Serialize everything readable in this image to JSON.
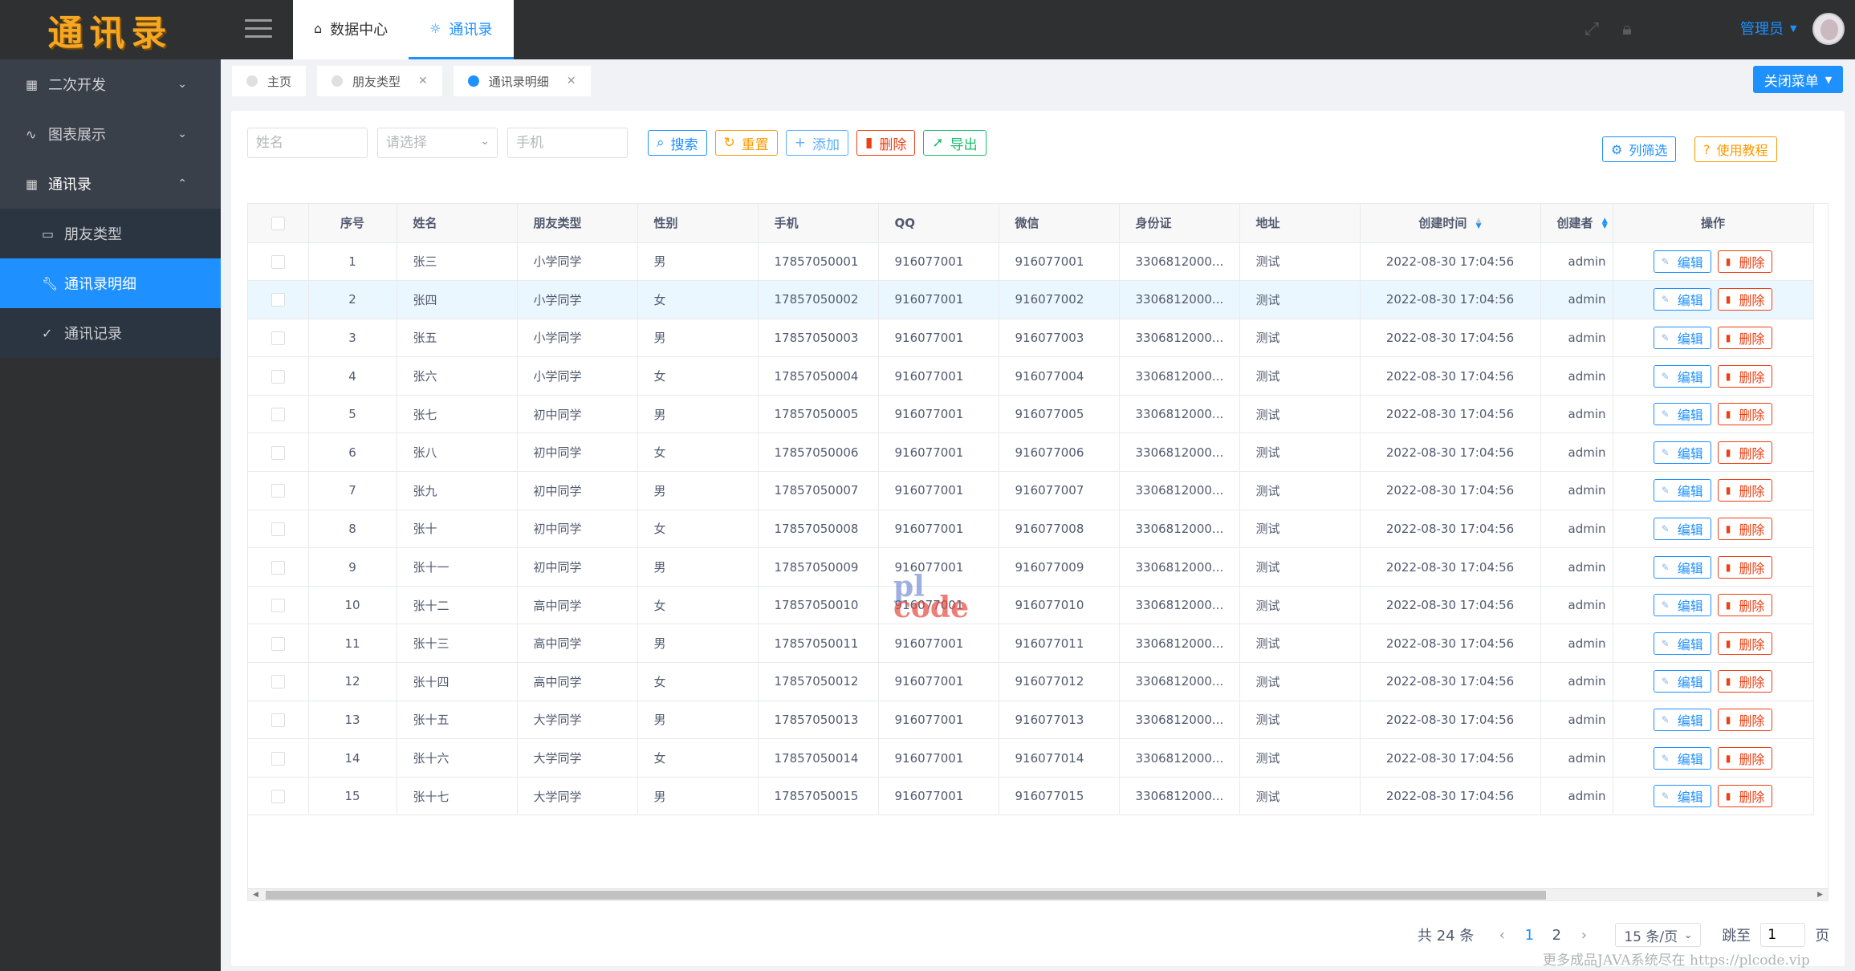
{
  "app": {
    "logo": "通讯录"
  },
  "top_tabs": [
    {
      "label": "数据中心",
      "icon": "home-icon"
    },
    {
      "label": "通讯录",
      "icon": "bulb-icon"
    }
  ],
  "user": {
    "name": "管理员"
  },
  "sidebar": {
    "items": [
      {
        "label": "二次开发",
        "icon": "grid-icon",
        "expanded": false
      },
      {
        "label": "图表展示",
        "icon": "pulse-icon",
        "expanded": false
      },
      {
        "label": "通讯录",
        "icon": "grid-icon",
        "expanded": true
      },
      {
        "label": "朋友类型",
        "icon": "bed-icon"
      },
      {
        "label": "通讯录明细",
        "icon": "wrench-icon",
        "active": true
      },
      {
        "label": "通讯记录",
        "icon": "check-circle-icon"
      }
    ]
  },
  "sub_tabs": [
    {
      "label": "主页"
    },
    {
      "label": "朋友类型"
    },
    {
      "label": "通讯录明细",
      "active": true
    }
  ],
  "close_menu_label": "关闭菜单",
  "search": {
    "name_placeholder": "姓名",
    "select_placeholder": "请选择",
    "phone_placeholder": "手机",
    "search_label": "搜索",
    "reset_label": "重置",
    "add_label": "添加",
    "delete_label": "删除",
    "export_label": "导出",
    "column_filter_label": "列筛选",
    "tutorial_label": "使用教程"
  },
  "table": {
    "columns": [
      "序号",
      "姓名",
      "朋友类型",
      "性别",
      "手机",
      "QQ",
      "微信",
      "身份证",
      "地址",
      "创建时间",
      "创建者",
      "操作"
    ],
    "edit_label": "编辑",
    "delete_label": "删除",
    "rows": [
      [
        "1",
        "张三",
        "小学同学",
        "男",
        "17857050001",
        "916077001",
        "916077001",
        "3306812000...",
        "测试",
        "2022-08-30 17:04:56",
        "admin"
      ],
      [
        "2",
        "张四",
        "小学同学",
        "女",
        "17857050002",
        "916077001",
        "916077002",
        "3306812000...",
        "测试",
        "2022-08-30 17:04:56",
        "admin"
      ],
      [
        "3",
        "张五",
        "小学同学",
        "男",
        "17857050003",
        "916077001",
        "916077003",
        "3306812000...",
        "测试",
        "2022-08-30 17:04:56",
        "admin"
      ],
      [
        "4",
        "张六",
        "小学同学",
        "女",
        "17857050004",
        "916077001",
        "916077004",
        "3306812000...",
        "测试",
        "2022-08-30 17:04:56",
        "admin"
      ],
      [
        "5",
        "张七",
        "初中同学",
        "男",
        "17857050005",
        "916077001",
        "916077005",
        "3306812000...",
        "测试",
        "2022-08-30 17:04:56",
        "admin"
      ],
      [
        "6",
        "张八",
        "初中同学",
        "女",
        "17857050006",
        "916077001",
        "916077006",
        "3306812000...",
        "测试",
        "2022-08-30 17:04:56",
        "admin"
      ],
      [
        "7",
        "张九",
        "初中同学",
        "男",
        "17857050007",
        "916077001",
        "916077007",
        "3306812000...",
        "测试",
        "2022-08-30 17:04:56",
        "admin"
      ],
      [
        "8",
        "张十",
        "初中同学",
        "女",
        "17857050008",
        "916077001",
        "916077008",
        "3306812000...",
        "测试",
        "2022-08-30 17:04:56",
        "admin"
      ],
      [
        "9",
        "张十一",
        "初中同学",
        "男",
        "17857050009",
        "916077001",
        "916077009",
        "3306812000...",
        "测试",
        "2022-08-30 17:04:56",
        "admin"
      ],
      [
        "10",
        "张十二",
        "高中同学",
        "女",
        "17857050010",
        "916077001",
        "916077010",
        "3306812000...",
        "测试",
        "2022-08-30 17:04:56",
        "admin"
      ],
      [
        "11",
        "张十三",
        "高中同学",
        "男",
        "17857050011",
        "916077001",
        "916077011",
        "3306812000...",
        "测试",
        "2022-08-30 17:04:56",
        "admin"
      ],
      [
        "12",
        "张十四",
        "高中同学",
        "女",
        "17857050012",
        "916077001",
        "916077012",
        "3306812000...",
        "测试",
        "2022-08-30 17:04:56",
        "admin"
      ],
      [
        "13",
        "张十五",
        "大学同学",
        "男",
        "17857050013",
        "916077001",
        "916077013",
        "3306812000...",
        "测试",
        "2022-08-30 17:04:56",
        "admin"
      ],
      [
        "14",
        "张十六",
        "大学同学",
        "女",
        "17857050014",
        "916077001",
        "916077014",
        "3306812000...",
        "测试",
        "2022-08-30 17:04:56",
        "admin"
      ],
      [
        "15",
        "张十七",
        "大学同学",
        "男",
        "17857050015",
        "916077001",
        "916077015",
        "3306812000...",
        "测试",
        "2022-08-30 17:04:56",
        "admin"
      ]
    ]
  },
  "watermark": {
    "line1": "pl",
    "line2": "code"
  },
  "pagination": {
    "total": "共 24 条",
    "pages": [
      "1",
      "2"
    ],
    "current": "1",
    "page_size": "15 条/页",
    "jump_label": "跳至",
    "jump_value": "1",
    "page_suffix": "页"
  },
  "footer_note": "更多成品JAVA系统尽在 https://plcode.vip",
  "colors": {
    "primary": "#1e90ff",
    "danger": "#ed3f14",
    "warning": "#ff9900",
    "success": "#19be6b",
    "dark": "#2f3032"
  }
}
